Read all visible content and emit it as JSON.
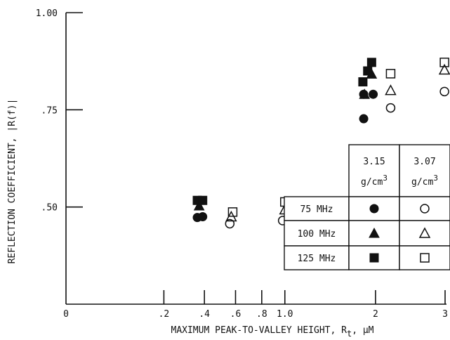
{
  "chart_data": {
    "type": "scatter",
    "xlabel": "MAXIMUM PEAK-TO-VALLEY HEIGHT, R",
    "xlabel_sub": "t",
    "xlabel_unit": ", μM",
    "ylabel": "REFLECTION COEFFICIENT, |R(f)|",
    "x_scale": "sqrt",
    "xlim": [
      0,
      3
    ],
    "ylim": [
      0.25,
      1.0
    ],
    "x_ticks": [
      {
        "value": 0.2,
        "label": ".2"
      },
      {
        "value": 0.4,
        "label": ".4"
      },
      {
        "value": 0.6,
        "label": ".6"
      },
      {
        "value": 0.8,
        "label": ".8"
      },
      {
        "value": 1.0,
        "label": "1.0"
      },
      {
        "value": 2,
        "label": "2"
      },
      {
        "value": 3,
        "label": "3"
      }
    ],
    "x_origin_label": "0",
    "y_ticks": [
      {
        "value": 0.5,
        "label": ".50"
      },
      {
        "value": 0.75,
        "label": ".75"
      },
      {
        "value": 1.0,
        "label": "1.00"
      }
    ],
    "legend_table": {
      "density_headers": [
        {
          "value": "3.15",
          "unit": "g/cm",
          "exp": "3"
        },
        {
          "value": "3.07",
          "unit": "g/cm",
          "exp": "3"
        }
      ],
      "rows": [
        {
          "label": "75 MHz",
          "marker": "circle"
        },
        {
          "label": "100 MHz",
          "marker": "triangle"
        },
        {
          "label": "125 MHz",
          "marker": "square"
        }
      ],
      "placement": "lower-right"
    },
    "series": [
      {
        "marker": "circle",
        "fill": "filled",
        "points": [
          {
            "x": 0.36,
            "y": 0.473
          },
          {
            "x": 0.39,
            "y": 0.475
          }
        ]
      },
      {
        "marker": "triangle",
        "fill": "filled",
        "points": [
          {
            "x": 0.37,
            "y": 0.503
          }
        ]
      },
      {
        "marker": "square",
        "fill": "filled",
        "points": [
          {
            "x": 0.36,
            "y": 0.517
          },
          {
            "x": 0.39,
            "y": 0.517
          }
        ]
      },
      {
        "marker": "circle",
        "fill": "open",
        "points": [
          {
            "x": 0.56,
            "y": 0.457
          },
          {
            "x": 0.98,
            "y": 0.465
          }
        ]
      },
      {
        "marker": "triangle",
        "fill": "open",
        "points": [
          {
            "x": 0.57,
            "y": 0.475
          },
          {
            "x": 1.0,
            "y": 0.493
          }
        ]
      },
      {
        "marker": "square",
        "fill": "open",
        "points": [
          {
            "x": 0.58,
            "y": 0.487
          },
          {
            "x": 1.0,
            "y": 0.513
          }
        ]
      },
      {
        "marker": "circle",
        "fill": "filled",
        "points": [
          {
            "x": 1.85,
            "y": 0.727
          },
          {
            "x": 1.85,
            "y": 0.79
          },
          {
            "x": 1.97,
            "y": 0.79
          }
        ]
      },
      {
        "marker": "triangle",
        "fill": "filled",
        "points": [
          {
            "x": 1.86,
            "y": 0.79
          },
          {
            "x": 1.95,
            "y": 0.842
          }
        ]
      },
      {
        "marker": "square",
        "fill": "filled",
        "points": [
          {
            "x": 1.84,
            "y": 0.822
          },
          {
            "x": 1.9,
            "y": 0.85
          },
          {
            "x": 1.95,
            "y": 0.872
          }
        ]
      },
      {
        "marker": "circle",
        "fill": "open",
        "points": [
          {
            "x": 2.2,
            "y": 0.755
          },
          {
            "x": 2.99,
            "y": 0.797
          }
        ]
      },
      {
        "marker": "triangle",
        "fill": "open",
        "points": [
          {
            "x": 2.2,
            "y": 0.8
          },
          {
            "x": 2.99,
            "y": 0.853
          }
        ]
      },
      {
        "marker": "square",
        "fill": "open",
        "points": [
          {
            "x": 2.2,
            "y": 0.843
          },
          {
            "x": 2.99,
            "y": 0.872
          }
        ]
      }
    ]
  }
}
